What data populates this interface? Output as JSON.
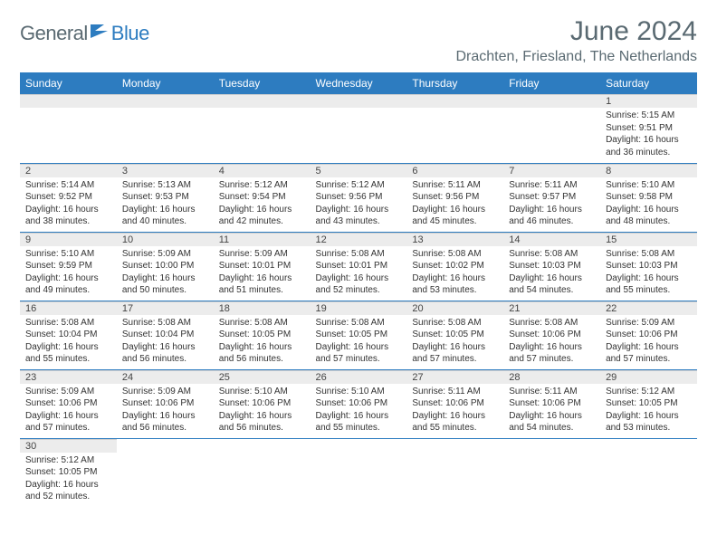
{
  "brand": {
    "part1": "General",
    "part2": "Blue"
  },
  "title": "June 2024",
  "location": "Drachten, Friesland, The Netherlands",
  "colors": {
    "header_bg": "#2d7cc0",
    "header_fg": "#ffffff",
    "daynum_bg": "#ececec",
    "rule": "#2d7cc0",
    "title_color": "#5a6a72"
  },
  "weekdays": [
    "Sunday",
    "Monday",
    "Tuesday",
    "Wednesday",
    "Thursday",
    "Friday",
    "Saturday"
  ],
  "weeks": [
    [
      null,
      null,
      null,
      null,
      null,
      null,
      {
        "n": "1",
        "sr": "Sunrise: 5:15 AM",
        "ss": "Sunset: 9:51 PM",
        "d1": "Daylight: 16 hours",
        "d2": "and 36 minutes."
      }
    ],
    [
      {
        "n": "2",
        "sr": "Sunrise: 5:14 AM",
        "ss": "Sunset: 9:52 PM",
        "d1": "Daylight: 16 hours",
        "d2": "and 38 minutes."
      },
      {
        "n": "3",
        "sr": "Sunrise: 5:13 AM",
        "ss": "Sunset: 9:53 PM",
        "d1": "Daylight: 16 hours",
        "d2": "and 40 minutes."
      },
      {
        "n": "4",
        "sr": "Sunrise: 5:12 AM",
        "ss": "Sunset: 9:54 PM",
        "d1": "Daylight: 16 hours",
        "d2": "and 42 minutes."
      },
      {
        "n": "5",
        "sr": "Sunrise: 5:12 AM",
        "ss": "Sunset: 9:56 PM",
        "d1": "Daylight: 16 hours",
        "d2": "and 43 minutes."
      },
      {
        "n": "6",
        "sr": "Sunrise: 5:11 AM",
        "ss": "Sunset: 9:56 PM",
        "d1": "Daylight: 16 hours",
        "d2": "and 45 minutes."
      },
      {
        "n": "7",
        "sr": "Sunrise: 5:11 AM",
        "ss": "Sunset: 9:57 PM",
        "d1": "Daylight: 16 hours",
        "d2": "and 46 minutes."
      },
      {
        "n": "8",
        "sr": "Sunrise: 5:10 AM",
        "ss": "Sunset: 9:58 PM",
        "d1": "Daylight: 16 hours",
        "d2": "and 48 minutes."
      }
    ],
    [
      {
        "n": "9",
        "sr": "Sunrise: 5:10 AM",
        "ss": "Sunset: 9:59 PM",
        "d1": "Daylight: 16 hours",
        "d2": "and 49 minutes."
      },
      {
        "n": "10",
        "sr": "Sunrise: 5:09 AM",
        "ss": "Sunset: 10:00 PM",
        "d1": "Daylight: 16 hours",
        "d2": "and 50 minutes."
      },
      {
        "n": "11",
        "sr": "Sunrise: 5:09 AM",
        "ss": "Sunset: 10:01 PM",
        "d1": "Daylight: 16 hours",
        "d2": "and 51 minutes."
      },
      {
        "n": "12",
        "sr": "Sunrise: 5:08 AM",
        "ss": "Sunset: 10:01 PM",
        "d1": "Daylight: 16 hours",
        "d2": "and 52 minutes."
      },
      {
        "n": "13",
        "sr": "Sunrise: 5:08 AM",
        "ss": "Sunset: 10:02 PM",
        "d1": "Daylight: 16 hours",
        "d2": "and 53 minutes."
      },
      {
        "n": "14",
        "sr": "Sunrise: 5:08 AM",
        "ss": "Sunset: 10:03 PM",
        "d1": "Daylight: 16 hours",
        "d2": "and 54 minutes."
      },
      {
        "n": "15",
        "sr": "Sunrise: 5:08 AM",
        "ss": "Sunset: 10:03 PM",
        "d1": "Daylight: 16 hours",
        "d2": "and 55 minutes."
      }
    ],
    [
      {
        "n": "16",
        "sr": "Sunrise: 5:08 AM",
        "ss": "Sunset: 10:04 PM",
        "d1": "Daylight: 16 hours",
        "d2": "and 55 minutes."
      },
      {
        "n": "17",
        "sr": "Sunrise: 5:08 AM",
        "ss": "Sunset: 10:04 PM",
        "d1": "Daylight: 16 hours",
        "d2": "and 56 minutes."
      },
      {
        "n": "18",
        "sr": "Sunrise: 5:08 AM",
        "ss": "Sunset: 10:05 PM",
        "d1": "Daylight: 16 hours",
        "d2": "and 56 minutes."
      },
      {
        "n": "19",
        "sr": "Sunrise: 5:08 AM",
        "ss": "Sunset: 10:05 PM",
        "d1": "Daylight: 16 hours",
        "d2": "and 57 minutes."
      },
      {
        "n": "20",
        "sr": "Sunrise: 5:08 AM",
        "ss": "Sunset: 10:05 PM",
        "d1": "Daylight: 16 hours",
        "d2": "and 57 minutes."
      },
      {
        "n": "21",
        "sr": "Sunrise: 5:08 AM",
        "ss": "Sunset: 10:06 PM",
        "d1": "Daylight: 16 hours",
        "d2": "and 57 minutes."
      },
      {
        "n": "22",
        "sr": "Sunrise: 5:09 AM",
        "ss": "Sunset: 10:06 PM",
        "d1": "Daylight: 16 hours",
        "d2": "and 57 minutes."
      }
    ],
    [
      {
        "n": "23",
        "sr": "Sunrise: 5:09 AM",
        "ss": "Sunset: 10:06 PM",
        "d1": "Daylight: 16 hours",
        "d2": "and 57 minutes."
      },
      {
        "n": "24",
        "sr": "Sunrise: 5:09 AM",
        "ss": "Sunset: 10:06 PM",
        "d1": "Daylight: 16 hours",
        "d2": "and 56 minutes."
      },
      {
        "n": "25",
        "sr": "Sunrise: 5:10 AM",
        "ss": "Sunset: 10:06 PM",
        "d1": "Daylight: 16 hours",
        "d2": "and 56 minutes."
      },
      {
        "n": "26",
        "sr": "Sunrise: 5:10 AM",
        "ss": "Sunset: 10:06 PM",
        "d1": "Daylight: 16 hours",
        "d2": "and 55 minutes."
      },
      {
        "n": "27",
        "sr": "Sunrise: 5:11 AM",
        "ss": "Sunset: 10:06 PM",
        "d1": "Daylight: 16 hours",
        "d2": "and 55 minutes."
      },
      {
        "n": "28",
        "sr": "Sunrise: 5:11 AM",
        "ss": "Sunset: 10:06 PM",
        "d1": "Daylight: 16 hours",
        "d2": "and 54 minutes."
      },
      {
        "n": "29",
        "sr": "Sunrise: 5:12 AM",
        "ss": "Sunset: 10:05 PM",
        "d1": "Daylight: 16 hours",
        "d2": "and 53 minutes."
      }
    ],
    [
      {
        "n": "30",
        "sr": "Sunrise: 5:12 AM",
        "ss": "Sunset: 10:05 PM",
        "d1": "Daylight: 16 hours",
        "d2": "and 52 minutes."
      },
      null,
      null,
      null,
      null,
      null,
      null
    ]
  ]
}
